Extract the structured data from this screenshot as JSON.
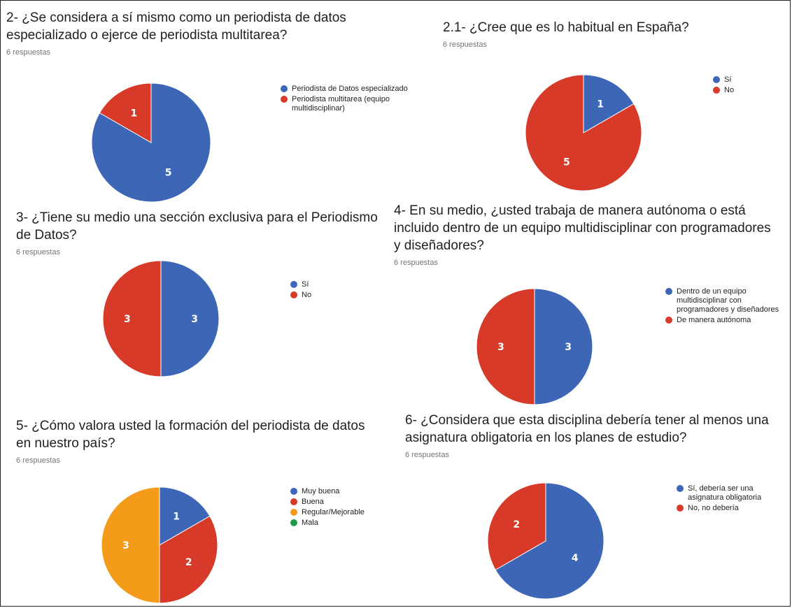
{
  "colors": {
    "blue": "#3e66b7",
    "red": "#d83a2a",
    "orange": "#f49b1a",
    "green": "#1f9c46"
  },
  "chart_data": [
    {
      "type": "pie",
      "title": "2- ¿Se considera a sí mismo como un periodista de datos especializado o ejerce de periodista multitarea?",
      "responses": "6 respuestas",
      "series": [
        {
          "name": "Periodista de Datos especializado",
          "value": 5,
          "color": "#3e66b7"
        },
        {
          "name": "Periodista multitarea (equipo multidisciplinar)",
          "value": 1,
          "color": "#d83a2a"
        }
      ],
      "legend_position": "right"
    },
    {
      "type": "pie",
      "title": "2.1- ¿Cree que es lo habitual en España?",
      "responses": "6 respuestas",
      "series": [
        {
          "name": "Sí",
          "value": 1,
          "color": "#3e66b7"
        },
        {
          "name": "No",
          "value": 5,
          "color": "#d83a2a"
        }
      ],
      "legend_position": "right"
    },
    {
      "type": "pie",
      "title": "3- ¿Tiene su medio una sección exclusiva para el Periodismo de Datos?",
      "responses": "6 respuestas",
      "series": [
        {
          "name": "Sí",
          "value": 3,
          "color": "#3e66b7"
        },
        {
          "name": "No",
          "value": 3,
          "color": "#d83a2a"
        }
      ],
      "legend_position": "right"
    },
    {
      "type": "pie",
      "title": "4- En su medio, ¿usted trabaja de manera autónoma o está incluido dentro de un equipo multidisciplinar con programadores y diseñadores?",
      "responses": "6 respuestas",
      "series": [
        {
          "name": "Dentro de un equipo multidisciplinar con programadores y diseñadores",
          "value": 3,
          "color": "#3e66b7"
        },
        {
          "name": "De manera autónoma",
          "value": 3,
          "color": "#d83a2a"
        }
      ],
      "legend_position": "right"
    },
    {
      "type": "pie",
      "title": "5- ¿Cómo valora usted la formación del periodista de datos en nuestro país?",
      "responses": "6 respuestas",
      "series": [
        {
          "name": "Muy buena",
          "value": 1,
          "color": "#3e66b7"
        },
        {
          "name": "Buena",
          "value": 2,
          "color": "#d83a2a"
        },
        {
          "name": "Regular/Mejorable",
          "value": 3,
          "color": "#f49b1a"
        },
        {
          "name": "Mala",
          "value": 0,
          "color": "#1f9c46"
        }
      ],
      "legend_position": "right"
    },
    {
      "type": "pie",
      "title": "6- ¿Considera que esta disciplina debería tener al menos una asignatura obligatoria en los planes de estudio?",
      "responses": "6 respuestas",
      "series": [
        {
          "name": "Sí, debería ser una asignatura obligatoria",
          "value": 4,
          "color": "#3e66b7"
        },
        {
          "name": "No, no debería",
          "value": 2,
          "color": "#d83a2a"
        }
      ],
      "legend_position": "right"
    }
  ]
}
